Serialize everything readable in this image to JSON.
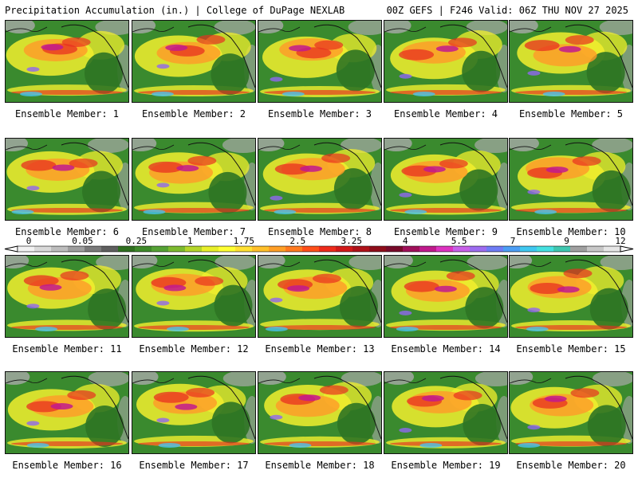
{
  "header": {
    "left": "Precipitation Accumulation (in.) | College of DuPage NEXLAB",
    "right": "00Z GEFS | F246 Valid: 06Z THU NOV 27 2025"
  },
  "members": [
    {
      "label": "Ensemble Member: 1"
    },
    {
      "label": "Ensemble Member: 2"
    },
    {
      "label": "Ensemble Member: 3"
    },
    {
      "label": "Ensemble Member: 4"
    },
    {
      "label": "Ensemble Member: 5"
    },
    {
      "label": "Ensemble Member: 6"
    },
    {
      "label": "Ensemble Member: 7"
    },
    {
      "label": "Ensemble Member: 8"
    },
    {
      "label": "Ensemble Member: 9"
    },
    {
      "label": "Ensemble Member: 10"
    },
    {
      "label": "Ensemble Member: 11"
    },
    {
      "label": "Ensemble Member: 12"
    },
    {
      "label": "Ensemble Member: 13"
    },
    {
      "label": "Ensemble Member: 14"
    },
    {
      "label": "Ensemble Member: 15"
    },
    {
      "label": "Ensemble Member: 16"
    },
    {
      "label": "Ensemble Member: 17"
    },
    {
      "label": "Ensemble Member: 18"
    },
    {
      "label": "Ensemble Member: 19"
    },
    {
      "label": "Ensemble Member: 20"
    }
  ],
  "legend": {
    "tick_labels": [
      "0",
      "0.05",
      "0.25",
      "1",
      "1.75",
      "2.5",
      "3.25",
      "4",
      "5.5",
      "7",
      "9",
      "12"
    ],
    "colors": [
      "#f2f2f2",
      "#d9d9d9",
      "#bdbdbd",
      "#9e9e9e",
      "#7a7a7a",
      "#5f5f5f",
      "#2f6f1f",
      "#3f8a2a",
      "#55a235",
      "#7dbb2f",
      "#b5d62a",
      "#e8ef2a",
      "#ffff33",
      "#ffe033",
      "#ffc02a",
      "#ff9f26",
      "#ff7a1f",
      "#ff4f1a",
      "#ee2b1b",
      "#d21a1a",
      "#b0121a",
      "#8f0d1a",
      "#780a2a",
      "#a0105a",
      "#c01a8c",
      "#dd33c0",
      "#c860e8",
      "#9d6cf0",
      "#6f7cf5",
      "#4c9ef5",
      "#40c8f0",
      "#45e0e0",
      "#3fc7b0",
      "#a0a0a0",
      "#c8c8c8",
      "#e6e6e6"
    ]
  },
  "map_colors": {
    "ocean_base": "#3a8a2e",
    "land": "#4d9a3a",
    "green_dark": "#2f7424",
    "yellow": "#f2ef2e",
    "orange": "#ff9a28",
    "red": "#e83020",
    "magenta": "#c21a8e",
    "purple": "#9066f0",
    "cyan": "#49c3ee",
    "gray": "#a9a9a9",
    "coast": "#111111"
  }
}
